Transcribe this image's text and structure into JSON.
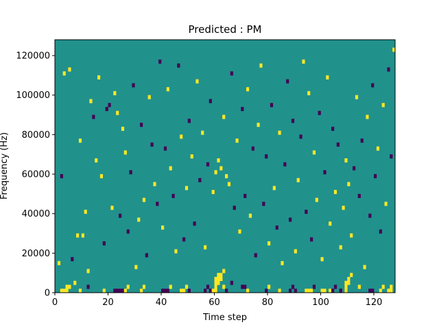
{
  "chart_data": {
    "type": "heatmap",
    "title": "Predicted : PM",
    "xlabel": "Time step",
    "ylabel": "Frequency (Hz)",
    "xlim": [
      0,
      128
    ],
    "ylim": [
      0,
      128000
    ],
    "x_ticks": [
      0,
      20,
      40,
      60,
      80,
      100,
      120
    ],
    "y_ticks": [
      0,
      20000,
      40000,
      60000,
      80000,
      100000,
      120000
    ],
    "y_tick_labels": [
      "0",
      "20000",
      "40000",
      "60000",
      "80000",
      "100000",
      "120000"
    ],
    "n_time_steps": 128,
    "n_freq_bins": 64,
    "freq_bin_width_hz": 2000,
    "colormap": "viridis",
    "value_levels": [
      0,
      1,
      2
    ],
    "colors": {
      "0": "#440154",
      "1": "#21918c",
      "2": "#fde725"
    },
    "background_value": 1,
    "grid": false,
    "legend": "none",
    "cells_note_value_2": "bright columns near steps 60-66 and 108-112 at low frequencies",
    "cells": [
      {
        "t": 2,
        "f": 0,
        "v": 2
      },
      {
        "t": 3,
        "f": 0,
        "v": 2
      },
      {
        "t": 4,
        "f": 0,
        "v": 2
      },
      {
        "t": 4,
        "f": 1,
        "v": 2
      },
      {
        "t": 5,
        "f": 1,
        "v": 2
      },
      {
        "t": 9,
        "f": 0,
        "v": 2
      },
      {
        "t": 12,
        "f": 1,
        "v": 0
      },
      {
        "t": 18,
        "f": 0,
        "v": 2
      },
      {
        "t": 22,
        "f": 0,
        "v": 0
      },
      {
        "t": 23,
        "f": 0,
        "v": 0
      },
      {
        "t": 24,
        "f": 0,
        "v": 0
      },
      {
        "t": 25,
        "f": 0,
        "v": 0
      },
      {
        "t": 26,
        "f": 0,
        "v": 2
      },
      {
        "t": 27,
        "f": 1,
        "v": 2
      },
      {
        "t": 32,
        "f": 0,
        "v": 2
      },
      {
        "t": 33,
        "f": 1,
        "v": 2
      },
      {
        "t": 40,
        "f": 0,
        "v": 0
      },
      {
        "t": 41,
        "f": 0,
        "v": 0
      },
      {
        "t": 42,
        "f": 0,
        "v": 0
      },
      {
        "t": 43,
        "f": 1,
        "v": 2
      },
      {
        "t": 47,
        "f": 0,
        "v": 2
      },
      {
        "t": 48,
        "f": 0,
        "v": 2
      },
      {
        "t": 49,
        "f": 1,
        "v": 2
      },
      {
        "t": 50,
        "f": 0,
        "v": 0
      },
      {
        "t": 56,
        "f": 0,
        "v": 0
      },
      {
        "t": 57,
        "f": 1,
        "v": 0
      },
      {
        "t": 58,
        "f": 0,
        "v": 0
      },
      {
        "t": 59,
        "f": 0,
        "v": 2
      },
      {
        "t": 60,
        "f": 0,
        "v": 2
      },
      {
        "t": 60,
        "f": 1,
        "v": 2
      },
      {
        "t": 60,
        "f": 2,
        "v": 2
      },
      {
        "t": 60,
        "f": 3,
        "v": 2
      },
      {
        "t": 61,
        "f": 2,
        "v": 2
      },
      {
        "t": 61,
        "f": 3,
        "v": 2
      },
      {
        "t": 61,
        "f": 4,
        "v": 2
      },
      {
        "t": 62,
        "f": 3,
        "v": 2
      },
      {
        "t": 62,
        "f": 4,
        "v": 2
      },
      {
        "t": 63,
        "f": 1,
        "v": 2
      },
      {
        "t": 63,
        "f": 5,
        "v": 2
      },
      {
        "t": 64,
        "f": 0,
        "v": 0
      },
      {
        "t": 66,
        "f": 2,
        "v": 0
      },
      {
        "t": 70,
        "f": 1,
        "v": 0
      },
      {
        "t": 71,
        "f": 1,
        "v": 0
      },
      {
        "t": 72,
        "f": 0,
        "v": 2
      },
      {
        "t": 79,
        "f": 0,
        "v": 0
      },
      {
        "t": 80,
        "f": 1,
        "v": 2
      },
      {
        "t": 84,
        "f": 0,
        "v": 2
      },
      {
        "t": 88,
        "f": 0,
        "v": 0
      },
      {
        "t": 89,
        "f": 1,
        "v": 0
      },
      {
        "t": 90,
        "f": 0,
        "v": 0
      },
      {
        "t": 94,
        "f": 0,
        "v": 2
      },
      {
        "t": 95,
        "f": 0,
        "v": 2
      },
      {
        "t": 96,
        "f": 0,
        "v": 2
      },
      {
        "t": 97,
        "f": 1,
        "v": 0
      },
      {
        "t": 100,
        "f": 0,
        "v": 2
      },
      {
        "t": 101,
        "f": 0,
        "v": 2
      },
      {
        "t": 103,
        "f": 0,
        "v": 2
      },
      {
        "t": 104,
        "f": 0,
        "v": 0
      },
      {
        "t": 105,
        "f": 1,
        "v": 0
      },
      {
        "t": 107,
        "f": 0,
        "v": 0
      },
      {
        "t": 109,
        "f": 0,
        "v": 2
      },
      {
        "t": 109,
        "f": 1,
        "v": 2
      },
      {
        "t": 109,
        "f": 2,
        "v": 2
      },
      {
        "t": 110,
        "f": 2,
        "v": 2
      },
      {
        "t": 110,
        "f": 3,
        "v": 2
      },
      {
        "t": 111,
        "f": 4,
        "v": 2
      },
      {
        "t": 114,
        "f": 1,
        "v": 2
      },
      {
        "t": 118,
        "f": 0,
        "v": 0
      },
      {
        "t": 119,
        "f": 0,
        "v": 0
      },
      {
        "t": 122,
        "f": 0,
        "v": 2
      },
      {
        "t": 123,
        "f": 1,
        "v": 2
      },
      {
        "t": 125,
        "f": 0,
        "v": 2
      },
      {
        "t": 126,
        "f": 0,
        "v": 2
      },
      {
        "t": 126,
        "f": 1,
        "v": 2
      },
      {
        "t": 1,
        "f": 7,
        "v": 2
      },
      {
        "t": 2,
        "f": 29,
        "v": 0
      },
      {
        "t": 3,
        "f": 55,
        "v": 2
      },
      {
        "t": 5,
        "f": 56,
        "v": 2
      },
      {
        "t": 6,
        "f": 8,
        "v": 0
      },
      {
        "t": 7,
        "f": 2,
        "v": 2
      },
      {
        "t": 8,
        "f": 14,
        "v": 2
      },
      {
        "t": 9,
        "f": 38,
        "v": 2
      },
      {
        "t": 10,
        "f": 14,
        "v": 2
      },
      {
        "t": 11,
        "f": 20,
        "v": 2
      },
      {
        "t": 12,
        "f": 5,
        "v": 2
      },
      {
        "t": 13,
        "f": 48,
        "v": 2
      },
      {
        "t": 14,
        "f": 44,
        "v": 0
      },
      {
        "t": 15,
        "f": 33,
        "v": 2
      },
      {
        "t": 16,
        "f": 54,
        "v": 2
      },
      {
        "t": 17,
        "f": 29,
        "v": 2
      },
      {
        "t": 18,
        "f": 12,
        "v": 0
      },
      {
        "t": 19,
        "f": 46,
        "v": 0
      },
      {
        "t": 20,
        "f": 47,
        "v": 0
      },
      {
        "t": 21,
        "f": 21,
        "v": 2
      },
      {
        "t": 22,
        "f": 50,
        "v": 2
      },
      {
        "t": 23,
        "f": 45,
        "v": 2
      },
      {
        "t": 24,
        "f": 19,
        "v": 0
      },
      {
        "t": 25,
        "f": 41,
        "v": 2
      },
      {
        "t": 26,
        "f": 35,
        "v": 2
      },
      {
        "t": 27,
        "f": 15,
        "v": 0
      },
      {
        "t": 28,
        "f": 30,
        "v": 0
      },
      {
        "t": 29,
        "f": 52,
        "v": 0
      },
      {
        "t": 30,
        "f": 6,
        "v": 2
      },
      {
        "t": 31,
        "f": 18,
        "v": 2
      },
      {
        "t": 32,
        "f": 42,
        "v": 0
      },
      {
        "t": 33,
        "f": 23,
        "v": 2
      },
      {
        "t": 34,
        "f": 9,
        "v": 0
      },
      {
        "t": 35,
        "f": 49,
        "v": 2
      },
      {
        "t": 36,
        "f": 37,
        "v": 0
      },
      {
        "t": 37,
        "f": 27,
        "v": 2
      },
      {
        "t": 38,
        "f": 22,
        "v": 0
      },
      {
        "t": 39,
        "f": 58,
        "v": 0
      },
      {
        "t": 40,
        "f": 16,
        "v": 2
      },
      {
        "t": 41,
        "f": 36,
        "v": 0
      },
      {
        "t": 42,
        "f": 51,
        "v": 2
      },
      {
        "t": 43,
        "f": 31,
        "v": 2
      },
      {
        "t": 44,
        "f": 24,
        "v": 0
      },
      {
        "t": 45,
        "f": 10,
        "v": 2
      },
      {
        "t": 46,
        "f": 57,
        "v": 0
      },
      {
        "t": 47,
        "f": 39,
        "v": 2
      },
      {
        "t": 48,
        "f": 13,
        "v": 0
      },
      {
        "t": 49,
        "f": 26,
        "v": 2
      },
      {
        "t": 50,
        "f": 43,
        "v": 0
      },
      {
        "t": 51,
        "f": 34,
        "v": 2
      },
      {
        "t": 52,
        "f": 17,
        "v": 0
      },
      {
        "t": 53,
        "f": 53,
        "v": 2
      },
      {
        "t": 54,
        "f": 28,
        "v": 0
      },
      {
        "t": 55,
        "f": 40,
        "v": 2
      },
      {
        "t": 56,
        "f": 11,
        "v": 2
      },
      {
        "t": 57,
        "f": 32,
        "v": 0
      },
      {
        "t": 58,
        "f": 48,
        "v": 0
      },
      {
        "t": 59,
        "f": 25,
        "v": 2
      },
      {
        "t": 60,
        "f": 30,
        "v": 2
      },
      {
        "t": 61,
        "f": 33,
        "v": 2
      },
      {
        "t": 62,
        "f": 31,
        "v": 2
      },
      {
        "t": 63,
        "f": 44,
        "v": 2
      },
      {
        "t": 64,
        "f": 29,
        "v": 2
      },
      {
        "t": 65,
        "f": 27,
        "v": 2
      },
      {
        "t": 66,
        "f": 55,
        "v": 0
      },
      {
        "t": 67,
        "f": 21,
        "v": 0
      },
      {
        "t": 68,
        "f": 38,
        "v": 2
      },
      {
        "t": 69,
        "f": 15,
        "v": 2
      },
      {
        "t": 70,
        "f": 46,
        "v": 0
      },
      {
        "t": 71,
        "f": 24,
        "v": 0
      },
      {
        "t": 72,
        "f": 51,
        "v": 2
      },
      {
        "t": 73,
        "f": 19,
        "v": 2
      },
      {
        "t": 74,
        "f": 36,
        "v": 0
      },
      {
        "t": 75,
        "f": 9,
        "v": 0
      },
      {
        "t": 76,
        "f": 42,
        "v": 2
      },
      {
        "t": 77,
        "f": 57,
        "v": 2
      },
      {
        "t": 78,
        "f": 22,
        "v": 0
      },
      {
        "t": 79,
        "f": 34,
        "v": 0
      },
      {
        "t": 80,
        "f": 12,
        "v": 2
      },
      {
        "t": 81,
        "f": 47,
        "v": 0
      },
      {
        "t": 82,
        "f": 26,
        "v": 2
      },
      {
        "t": 83,
        "f": 16,
        "v": 0
      },
      {
        "t": 84,
        "f": 40,
        "v": 2
      },
      {
        "t": 85,
        "f": 7,
        "v": 2
      },
      {
        "t": 86,
        "f": 32,
        "v": 0
      },
      {
        "t": 87,
        "f": 53,
        "v": 0
      },
      {
        "t": 88,
        "f": 18,
        "v": 0
      },
      {
        "t": 89,
        "f": 43,
        "v": 0
      },
      {
        "t": 90,
        "f": 10,
        "v": 2
      },
      {
        "t": 91,
        "f": 28,
        "v": 2
      },
      {
        "t": 92,
        "f": 39,
        "v": 0
      },
      {
        "t": 93,
        "f": 58,
        "v": 2
      },
      {
        "t": 94,
        "f": 20,
        "v": 0
      },
      {
        "t": 95,
        "f": 50,
        "v": 2
      },
      {
        "t": 96,
        "f": 13,
        "v": 0
      },
      {
        "t": 97,
        "f": 35,
        "v": 2
      },
      {
        "t": 98,
        "f": 23,
        "v": 2
      },
      {
        "t": 99,
        "f": 45,
        "v": 0
      },
      {
        "t": 100,
        "f": 8,
        "v": 2
      },
      {
        "t": 101,
        "f": 30,
        "v": 0
      },
      {
        "t": 102,
        "f": 54,
        "v": 2
      },
      {
        "t": 103,
        "f": 17,
        "v": 2
      },
      {
        "t": 104,
        "f": 41,
        "v": 0
      },
      {
        "t": 105,
        "f": 25,
        "v": 2
      },
      {
        "t": 106,
        "f": 37,
        "v": 0
      },
      {
        "t": 107,
        "f": 11,
        "v": 2
      },
      {
        "t": 108,
        "f": 21,
        "v": 2
      },
      {
        "t": 109,
        "f": 33,
        "v": 2
      },
      {
        "t": 110,
        "f": 27,
        "v": 2
      },
      {
        "t": 111,
        "f": 14,
        "v": 2
      },
      {
        "t": 112,
        "f": 31,
        "v": 0
      },
      {
        "t": 113,
        "f": 49,
        "v": 2
      },
      {
        "t": 114,
        "f": 24,
        "v": 0
      },
      {
        "t": 115,
        "f": 38,
        "v": 0
      },
      {
        "t": 116,
        "f": 6,
        "v": 2
      },
      {
        "t": 117,
        "f": 44,
        "v": 2
      },
      {
        "t": 118,
        "f": 19,
        "v": 0
      },
      {
        "t": 119,
        "f": 52,
        "v": 0
      },
      {
        "t": 120,
        "f": 29,
        "v": 0
      },
      {
        "t": 121,
        "f": 36,
        "v": 2
      },
      {
        "t": 122,
        "f": 15,
        "v": 0
      },
      {
        "t": 123,
        "f": 47,
        "v": 2
      },
      {
        "t": 124,
        "f": 22,
        "v": 2
      },
      {
        "t": 125,
        "f": 56,
        "v": 0
      },
      {
        "t": 126,
        "f": 34,
        "v": 0
      },
      {
        "t": 127,
        "f": 61,
        "v": 2
      }
    ]
  }
}
